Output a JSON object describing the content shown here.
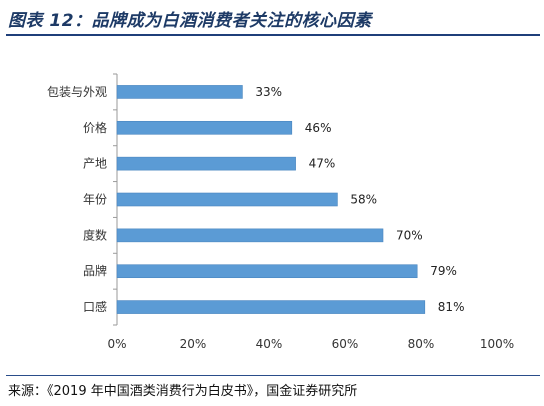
{
  "header": {
    "title": "图表 12：品牌成为白酒消费者关注的核心因素"
  },
  "footer": {
    "source": "来源：《2019 年中国酒类消费行为白皮书》，国金证券研究所"
  },
  "colors": {
    "bar": "#5b9bd5",
    "bar_stroke": "#4a86bf",
    "rule": "#1f3f7a",
    "title": "#1d3a66"
  },
  "chart_data": {
    "type": "bar",
    "orientation": "horizontal",
    "categories": [
      "包装与外观",
      "价格",
      "产地",
      "年份",
      "度数",
      "品牌",
      "口感"
    ],
    "values": [
      33,
      46,
      47,
      58,
      70,
      79,
      81
    ],
    "value_labels": [
      "33%",
      "46%",
      "47%",
      "58%",
      "70%",
      "79%",
      "81%"
    ],
    "x_ticks": [
      "0%",
      "20%",
      "40%",
      "60%",
      "80%",
      "100%"
    ],
    "xlim": [
      0,
      100
    ],
    "grid": false,
    "legend": false
  }
}
